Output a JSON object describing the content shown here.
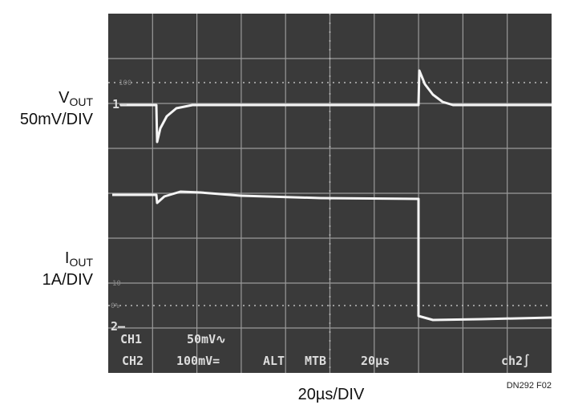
{
  "labels": {
    "vout": {
      "main": "V",
      "sub": "OUT",
      "scale": "50mV/DIV"
    },
    "iout": {
      "main": "I",
      "sub": "OUT",
      "scale": "1A/DIV"
    },
    "timebase": "20µs/DIV",
    "figure_id": "DN292 F02"
  },
  "screen": {
    "marker1": "1–",
    "marker2": "2–",
    "graticule_top": "100",
    "graticule_10": "10",
    "graticule_0": "0%",
    "readout": {
      "row1": [
        "CH1",
        "50mV∿"
      ],
      "row2": [
        "CH2",
        "100mV=",
        "ALT",
        "MTB",
        "20µs",
        "ch2∫"
      ]
    }
  }
}
